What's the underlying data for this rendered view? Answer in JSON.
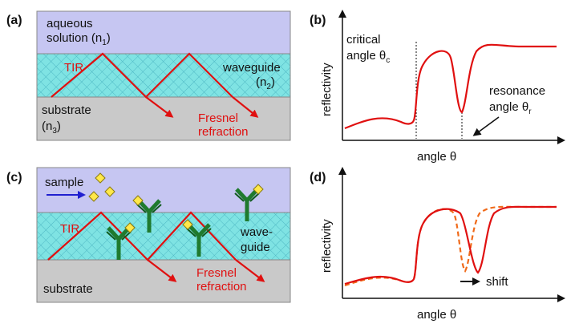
{
  "panels": {
    "a": {
      "label": "(a)",
      "layer_top": "aqueous",
      "layer_top_line2_main": "solution (n",
      "layer_top_sub": "1",
      "layer_top_close": ")",
      "tir": "TIR",
      "waveguide": "waveguide",
      "wg_n_main": "(n",
      "wg_n_sub": "2",
      "wg_n_close": ")",
      "substrate": "substrate",
      "sub_n_main": "(n",
      "sub_n_sub": "3",
      "sub_n_close": ")",
      "fresnel_1": "Fresnel",
      "fresnel_2": "refraction"
    },
    "b": {
      "label": "(b)",
      "ylabel": "reflectivity",
      "xlabel": "angle θ",
      "critical_1": "critical",
      "critical_2_main": "angle θ",
      "critical_sub": "c",
      "resonance_1": "resonance",
      "resonance_2_main": "angle θ",
      "resonance_sub": "r"
    },
    "c": {
      "label": "(c)",
      "sample": "sample",
      "tir": "TIR",
      "wave_1": "wave-",
      "wave_2": "guide",
      "substrate": "substrate",
      "fresnel_1": "Fresnel",
      "fresnel_2": "refraction"
    },
    "d": {
      "label": "(d)",
      "ylabel": "reflectivity",
      "xlabel": "angle θ",
      "shift": "shift"
    }
  },
  "colors": {
    "aqueous": "#c6c6f2",
    "waveguide": "#7fe3e3",
    "substrate": "#c9c9c9",
    "ray": "#e01010",
    "curve_dashed": "#f06a1a",
    "antibody": "#1f7a2e",
    "antigen": "#ffe84a",
    "sample_arrow": "#2020d0"
  },
  "icons": [
    "antibody-icon",
    "antigen-icon",
    "arrow-icon"
  ]
}
